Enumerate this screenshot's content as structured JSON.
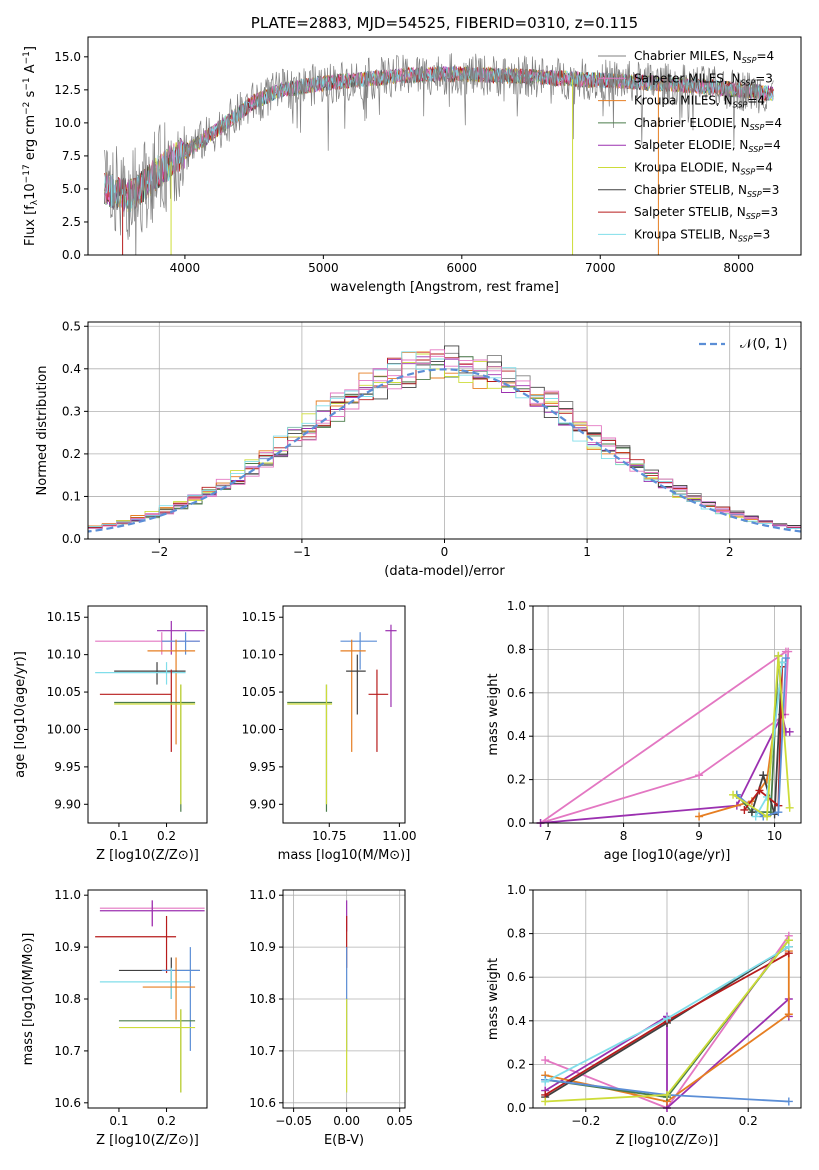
{
  "chart_data": [
    {
      "type": "line",
      "title": "PLATE=2883, MJD=54525, FIBERID=0310, z=0.115",
      "xlabel": "wavelength [Angstrom, rest frame]",
      "ylabel": "Flux [f_λ10^-17 erg cm^-2 s^-1 A^-1]",
      "xlim": [
        3300,
        8450
      ],
      "ylim": [
        0,
        16.5
      ],
      "xticks": [
        "4000",
        "5000",
        "6000",
        "7000",
        "8000"
      ],
      "yticks": [
        "0.0",
        "2.5",
        "5.0",
        "7.5",
        "10.0",
        "12.5",
        "15.0"
      ],
      "legend_position": "top-right",
      "series": [
        {
          "name": "Chabrier MILES, N_SSP=4",
          "color": "#808080"
        },
        {
          "name": "Salpeter MILES, N_SSP=3",
          "color": "#e377c2"
        },
        {
          "name": "Kroupa MILES, N_SSP=4",
          "color": "#e67e22"
        },
        {
          "name": "Chabrier ELODIE, N_SSP=4",
          "color": "#4a7c4a"
        },
        {
          "name": "Salpeter ELODIE, N_SSP=4",
          "color": "#9b30b0"
        },
        {
          "name": "Kroupa ELODIE, N_SSP=4",
          "color": "#cddc39"
        },
        {
          "name": "Chabrier STELIB, N_SSP=3",
          "color": "#404040"
        },
        {
          "name": "Salpeter STELIB, N_SSP=3",
          "color": "#b71c1c"
        },
        {
          "name": "Kroupa STELIB, N_SSP=3",
          "color": "#80deea"
        }
      ],
      "continuum": {
        "x": [
          3420,
          3600,
          3800,
          3950,
          4100,
          4300,
          4500,
          4700,
          5000,
          5300,
          5600,
          5900,
          6200,
          6500,
          6800,
          7100,
          7400,
          7700,
          8000,
          8250
        ],
        "y": [
          5.0,
          4.4,
          6.2,
          7.5,
          8.5,
          10.0,
          11.6,
          12.5,
          13.0,
          13.3,
          13.6,
          13.7,
          13.6,
          13.5,
          13.3,
          13.2,
          13.0,
          12.8,
          12.5,
          12.2
        ]
      }
    },
    {
      "type": "step",
      "xlabel": "(data-model)/error",
      "ylabel": "Normed distribution",
      "xlim": [
        -2.5,
        2.5
      ],
      "ylim": [
        0,
        0.51
      ],
      "xticks": [
        "−2",
        "−1",
        "0",
        "1",
        "2"
      ],
      "yticks": [
        "0.0",
        "0.1",
        "0.2",
        "0.3",
        "0.4",
        "0.5"
      ],
      "grid": true,
      "legend_position": "top-right",
      "legend": "𝒩(0, 1)",
      "reference_curve": {
        "name": "𝒩(0, 1)",
        "mean": 0,
        "sigma": 1,
        "color": "#5b8ed6"
      },
      "bin_width": 0.1
    },
    {
      "type": "errorbar",
      "xlabel": "Z [log10(Z/Z⊙)]",
      "ylabel": "age  [log10(age/yr)]",
      "xticks": [
        "0.1",
        "0.2"
      ],
      "yticks": [
        "9.90",
        "9.95",
        "10.00",
        "10.05",
        "10.10",
        "10.15"
      ],
      "xlim": [
        0.035,
        0.285
      ],
      "ylim": [
        9.875,
        10.165
      ],
      "points": [
        {
          "x": 0.21,
          "y": 10.132,
          "xerr": [
            0.18,
            0.28
          ],
          "yerr": [
            10.1,
            10.145
          ],
          "color": "#9b30b0"
        },
        {
          "x": 0.19,
          "y": 10.118,
          "xerr": [
            0.05,
            0.27
          ],
          "yerr": [
            10.1,
            10.13
          ],
          "color": "#e377c2"
        },
        {
          "x": 0.24,
          "y": 10.118,
          "xerr": [
            0.19,
            0.27
          ],
          "yerr": [
            10.1,
            10.13
          ],
          "color": "#5b8ed6"
        },
        {
          "x": 0.22,
          "y": 10.105,
          "xerr": [
            0.16,
            0.26
          ],
          "yerr": [
            9.98,
            10.12
          ],
          "color": "#e67e22"
        },
        {
          "x": 0.18,
          "y": 10.078,
          "xerr": [
            0.09,
            0.24
          ],
          "yerr": [
            10.06,
            10.09
          ],
          "color": "#404040"
        },
        {
          "x": 0.2,
          "y": 10.076,
          "xerr": [
            0.05,
            0.24
          ],
          "yerr": [
            10.06,
            10.09
          ],
          "color": "#80deea"
        },
        {
          "x": 0.21,
          "y": 10.047,
          "xerr": [
            0.06,
            0.21
          ],
          "yerr": [
            9.97,
            10.08
          ],
          "color": "#b71c1c"
        },
        {
          "x": 0.23,
          "y": 10.036,
          "xerr": [
            0.09,
            0.26
          ],
          "yerr": [
            9.89,
            10.06
          ],
          "color": "#4a7c4a"
        },
        {
          "x": 0.23,
          "y": 10.034,
          "xerr": [
            0.09,
            0.26
          ],
          "yerr": [
            9.9,
            10.06
          ],
          "color": "#cddc39"
        }
      ]
    },
    {
      "type": "errorbar",
      "xlabel": "mass [log10(M/M⊙)]",
      "xticks": [
        "10.75",
        "11.00"
      ],
      "yticks": [
        "9.90",
        "9.95",
        "10.00",
        "10.05",
        "10.10",
        "10.15"
      ],
      "xlim": [
        10.585,
        11.02
      ],
      "ylim": [
        9.875,
        10.165
      ],
      "points": [
        {
          "x": 10.97,
          "y": 10.132,
          "xerr": [
            10.95,
            10.99
          ],
          "yerr": [
            10.03,
            10.14
          ],
          "color": "#9b30b0"
        },
        {
          "x": 10.86,
          "y": 10.118,
          "xerr": [
            10.79,
            10.92
          ],
          "yerr": [
            10.08,
            10.13
          ],
          "color": "#5b8ed6"
        },
        {
          "x": 10.83,
          "y": 10.105,
          "xerr": [
            10.79,
            10.88
          ],
          "yerr": [
            9.97,
            10.12
          ],
          "color": "#e67e22"
        },
        {
          "x": 10.85,
          "y": 10.078,
          "xerr": [
            10.81,
            10.88
          ],
          "yerr": [
            10.02,
            10.1
          ],
          "color": "#404040"
        },
        {
          "x": 10.92,
          "y": 10.047,
          "xerr": [
            10.89,
            10.96
          ],
          "yerr": [
            9.97,
            10.08
          ],
          "color": "#b71c1c"
        },
        {
          "x": 10.74,
          "y": 10.036,
          "xerr": [
            10.6,
            10.76
          ],
          "yerr": [
            9.89,
            10.06
          ],
          "color": "#4a7c4a"
        },
        {
          "x": 10.74,
          "y": 10.034,
          "xerr": [
            10.6,
            10.76
          ],
          "yerr": [
            9.9,
            10.06
          ],
          "color": "#cddc39"
        }
      ]
    },
    {
      "type": "line",
      "xlabel": "age  [log10(age/yr)]",
      "ylabel": "mass weight",
      "xticks": [
        "7",
        "8",
        "9",
        "10"
      ],
      "yticks": [
        "0.0",
        "0.2",
        "0.4",
        "0.6",
        "0.8",
        "1.0"
      ],
      "xlim": [
        6.8,
        10.35
      ],
      "ylim": [
        0,
        1.0
      ],
      "grid": true,
      "series": [
        {
          "color": "#e377c2",
          "x": [
            10.18,
            10.14,
            9.0,
            6.9,
            10.15
          ],
          "y": [
            0.79,
            0.5,
            0.22,
            0.0,
            0.79
          ]
        },
        {
          "color": "#9b30b0",
          "x": [
            6.9,
            9.5,
            10.1,
            10.15,
            10.2
          ],
          "y": [
            0.0,
            0.08,
            0.5,
            0.42,
            0.42
          ]
        },
        {
          "color": "#e67e22",
          "x": [
            9.0,
            9.7,
            9.9,
            10.1
          ],
          "y": [
            0.03,
            0.1,
            0.2,
            0.72
          ]
        },
        {
          "color": "#4a7c4a",
          "x": [
            9.5,
            9.7,
            9.95,
            10.05
          ],
          "y": [
            0.13,
            0.05,
            0.05,
            0.77
          ]
        },
        {
          "color": "#404040",
          "x": [
            9.7,
            9.85,
            10.0,
            10.1
          ],
          "y": [
            0.05,
            0.22,
            0.04,
            0.74
          ]
        },
        {
          "color": "#b71c1c",
          "x": [
            9.6,
            9.8,
            10.05,
            10.1
          ],
          "y": [
            0.06,
            0.15,
            0.08,
            0.72
          ]
        },
        {
          "color": "#5b8ed6",
          "x": [
            9.5,
            9.85,
            10.05,
            10.15
          ],
          "y": [
            0.13,
            0.03,
            0.05,
            0.76
          ]
        },
        {
          "color": "#80deea",
          "x": [
            9.75,
            9.9,
            10.1
          ],
          "y": [
            0.03,
            0.12,
            0.74
          ]
        },
        {
          "color": "#cddc39",
          "x": [
            9.45,
            9.9,
            10.05,
            10.2
          ],
          "y": [
            0.13,
            0.03,
            0.77,
            0.07
          ]
        }
      ]
    },
    {
      "type": "errorbar",
      "xlabel": "Z [log10(Z/Z⊙)]",
      "ylabel": "mass [log10(M/M⊙)]",
      "xticks": [
        "0.1",
        "0.2"
      ],
      "yticks": [
        "10.6",
        "10.7",
        "10.8",
        "10.9",
        "11.0"
      ],
      "xlim": [
        0.035,
        0.285
      ],
      "ylim": [
        10.59,
        11.01
      ],
      "points": [
        {
          "x": 0.17,
          "y": 10.975,
          "xerr": [
            0.06,
            0.28
          ],
          "yerr": [
            10.94,
            10.99
          ],
          "color": "#e377c2"
        },
        {
          "x": 0.17,
          "y": 10.97,
          "xerr": [
            0.06,
            0.28
          ],
          "yerr": [
            10.94,
            10.99
          ],
          "color": "#9b30b0"
        },
        {
          "x": 0.2,
          "y": 10.92,
          "xerr": [
            0.05,
            0.22
          ],
          "yerr": [
            10.85,
            10.96
          ],
          "color": "#b71c1c"
        },
        {
          "x": 0.21,
          "y": 10.855,
          "xerr": [
            0.1,
            0.27
          ],
          "yerr": [
            10.8,
            10.88
          ],
          "color": "#404040"
        },
        {
          "x": 0.25,
          "y": 10.855,
          "xerr": [
            0.19,
            0.27
          ],
          "yerr": [
            10.7,
            10.9
          ],
          "color": "#5b8ed6"
        },
        {
          "x": 0.21,
          "y": 10.833,
          "xerr": [
            0.06,
            0.25
          ],
          "yerr": [
            10.8,
            10.86
          ],
          "color": "#80deea"
        },
        {
          "x": 0.22,
          "y": 10.823,
          "xerr": [
            0.15,
            0.26
          ],
          "yerr": [
            10.76,
            10.88
          ],
          "color": "#e67e22"
        },
        {
          "x": 0.23,
          "y": 10.758,
          "xerr": [
            0.1,
            0.26
          ],
          "yerr": [
            10.62,
            10.78
          ],
          "color": "#4a7c4a"
        },
        {
          "x": 0.23,
          "y": 10.745,
          "xerr": [
            0.1,
            0.26
          ],
          "yerr": [
            10.62,
            10.78
          ],
          "color": "#cddc39"
        }
      ]
    },
    {
      "type": "errorbar",
      "xlabel": "E(B-V)",
      "xticks": [
        "−0.05",
        "0.00",
        "0.05"
      ],
      "yticks": [
        "10.6",
        "10.7",
        "10.8",
        "10.9",
        "11.0"
      ],
      "xlim": [
        -0.06,
        0.055
      ],
      "ylim": [
        10.59,
        11.01
      ],
      "points": [
        {
          "x": 0.0,
          "y": 10.97,
          "yerr": [
            10.93,
            10.99
          ],
          "color": "#9b30b0"
        },
        {
          "x": 0.0,
          "y": 10.92,
          "yerr": [
            10.86,
            10.96
          ],
          "color": "#b71c1c"
        },
        {
          "x": 0.0,
          "y": 10.8,
          "yerr": [
            10.7,
            10.9
          ],
          "color": "#5b8ed6"
        },
        {
          "x": 0.0,
          "y": 10.75,
          "yerr": [
            10.62,
            10.8
          ],
          "color": "#cddc39"
        }
      ]
    },
    {
      "type": "line",
      "xlabel": "Z [log10(Z/Z⊙)]",
      "ylabel": "mass weight",
      "xticks": [
        "−0.2",
        "0.0",
        "0.2"
      ],
      "yticks": [
        "0.0",
        "0.2",
        "0.4",
        "0.6",
        "0.8",
        "1.0"
      ],
      "xlim": [
        -0.33,
        0.33
      ],
      "ylim": [
        0,
        1.0
      ],
      "grid": true,
      "series": [
        {
          "color": "#e377c2",
          "x": [
            -0.3,
            0.0,
            0.3
          ],
          "y": [
            0.22,
            0.0,
            0.79
          ]
        },
        {
          "color": "#9b30b0",
          "x": [
            -0.3,
            0.0,
            0.0,
            0.3,
            0.3
          ],
          "y": [
            0.08,
            0.42,
            0.0,
            0.5,
            0.42
          ]
        },
        {
          "color": "#e67e22",
          "x": [
            -0.3,
            0.0,
            0.3,
            0.3
          ],
          "y": [
            0.15,
            0.03,
            0.43,
            0.72
          ]
        },
        {
          "color": "#4a7c4a",
          "x": [
            -0.3,
            0.0,
            0.3
          ],
          "y": [
            0.13,
            0.05,
            0.77
          ]
        },
        {
          "color": "#404040",
          "x": [
            -0.3,
            0.0,
            0.3
          ],
          "y": [
            0.05,
            0.39,
            0.74
          ]
        },
        {
          "color": "#b71c1c",
          "x": [
            -0.3,
            0.0,
            0.3
          ],
          "y": [
            0.06,
            0.4,
            0.71
          ]
        },
        {
          "color": "#5b8ed6",
          "x": [
            -0.3,
            0.0,
            0.3
          ],
          "y": [
            0.13,
            0.06,
            0.03
          ]
        },
        {
          "color": "#80deea",
          "x": [
            -0.3,
            0.0,
            0.3
          ],
          "y": [
            0.12,
            0.41,
            0.74
          ]
        },
        {
          "color": "#cddc39",
          "x": [
            -0.3,
            0.0,
            0.3
          ],
          "y": [
            0.03,
            0.06,
            0.77
          ]
        }
      ]
    }
  ]
}
